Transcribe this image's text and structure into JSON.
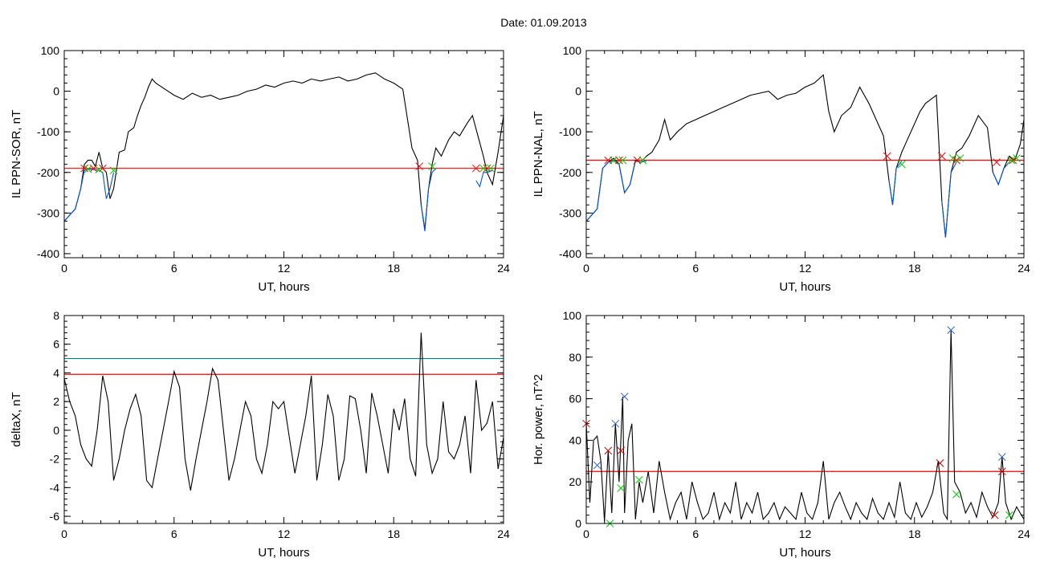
{
  "page": {
    "title": "Date:  01.09.2013"
  },
  "chart_data": [
    {
      "id": "il-sor",
      "type": "line",
      "xlabel": "UT, hours",
      "ylabel": "IL PPN-SOR, nT",
      "xlim": [
        0,
        24
      ],
      "ylim": [
        -410,
        100
      ],
      "xticks": [
        0,
        6,
        12,
        18,
        24
      ],
      "yticks": [
        100,
        0,
        -100,
        -200,
        -300,
        -400
      ],
      "threshold_lines": [
        {
          "value": -190,
          "color": "#ff0000"
        }
      ],
      "series": [
        {
          "color": "#000000",
          "x": [
            0,
            0.3,
            0.6,
            0.9,
            1.1,
            1.3,
            1.5,
            1.7,
            1.9,
            2.1,
            2.3,
            2.5,
            2.7,
            3.0,
            3.3,
            3.5,
            3.8,
            4.0,
            4.2,
            4.4,
            4.6,
            4.8,
            5.0,
            5.5,
            6.0,
            6.5,
            7.0,
            7.5,
            8.0,
            8.5,
            9.0,
            9.5,
            10.0,
            10.5,
            11.0,
            11.5,
            12.0,
            12.5,
            13.0,
            13.5,
            14.0,
            14.5,
            15.0,
            15.5,
            16.0,
            16.5,
            17.0,
            17.5,
            18.0,
            18.5,
            19.0,
            19.3,
            19.5,
            19.7,
            19.9,
            20.1,
            20.3,
            20.6,
            21.0,
            21.3,
            21.6,
            22.0,
            22.3,
            22.6,
            22.9,
            23.1,
            23.4,
            23.7,
            24.0
          ],
          "y": [
            -320,
            -305,
            -290,
            -240,
            -180,
            -170,
            -170,
            -185,
            -150,
            -190,
            -200,
            -265,
            -240,
            -150,
            -145,
            -100,
            -90,
            -60,
            -35,
            -15,
            10,
            30,
            20,
            5,
            -10,
            -20,
            -5,
            -15,
            -10,
            -20,
            -15,
            -10,
            0,
            5,
            15,
            10,
            20,
            25,
            20,
            30,
            25,
            30,
            35,
            25,
            30,
            40,
            45,
            30,
            20,
            5,
            -140,
            -170,
            -280,
            -340,
            -240,
            -180,
            -140,
            -160,
            -120,
            -100,
            -110,
            -80,
            -60,
            -110,
            -160,
            -200,
            -230,
            -150,
            -60
          ]
        },
        {
          "color": "#0055dd",
          "x": [
            0,
            0.3,
            0.6,
            0.9,
            1.1,
            1.3,
            1.6,
            1.9,
            2.1,
            2.3,
            2.5,
            2.7
          ],
          "y": [
            -320,
            -305,
            -290,
            -240,
            -195,
            -192,
            -193,
            -195,
            -200,
            -265,
            -240,
            -200
          ]
        },
        {
          "color": "#0055dd",
          "x": [
            19.5,
            19.7,
            19.9,
            20.1,
            20.3
          ],
          "y": [
            -280,
            -345,
            -240,
            -200,
            -190
          ]
        },
        {
          "color": "#0055dd",
          "x": [
            22.5,
            22.7,
            22.9,
            23.1,
            23.4
          ],
          "y": [
            -220,
            -235,
            -200,
            -200,
            -195
          ]
        }
      ],
      "markers_start": {
        "color": "#ff0000",
        "x": [
          1.1,
          1.6,
          2.1,
          19.4,
          22.5,
          23.1
        ],
        "y": [
          -190,
          -190,
          -190,
          -185,
          -190,
          -190
        ]
      },
      "markers_end": {
        "color": "#00cc00",
        "x": [
          1.3,
          1.9,
          2.7,
          20.1,
          22.9,
          23.3
        ],
        "y": [
          -192,
          -193,
          -195,
          -185,
          -190,
          -190
        ]
      }
    },
    {
      "id": "il-nal",
      "type": "line",
      "xlabel": "UT, hours",
      "ylabel": "IL PPN-NAL, nT",
      "xlim": [
        0,
        24
      ],
      "ylim": [
        -410,
        100
      ],
      "xticks": [
        0,
        6,
        12,
        18,
        24
      ],
      "yticks": [
        100,
        0,
        -100,
        -200,
        -300,
        -400
      ],
      "threshold_lines": [
        {
          "value": -170,
          "color": "#ff0000"
        }
      ],
      "series": [
        {
          "color": "#000000",
          "x": [
            0,
            0.3,
            0.6,
            0.9,
            1.2,
            1.5,
            1.8,
            2.1,
            2.4,
            2.7,
            3.0,
            3.3,
            3.6,
            4.0,
            4.3,
            4.6,
            5.0,
            5.5,
            6.0,
            6.5,
            7.0,
            7.5,
            8.0,
            8.5,
            9.0,
            9.5,
            10.0,
            10.5,
            11.0,
            11.5,
            12.0,
            12.5,
            13.0,
            13.3,
            13.6,
            14.0,
            14.5,
            15.0,
            15.5,
            16.0,
            16.3,
            16.6,
            16.8,
            17.0,
            17.3,
            17.6,
            18.0,
            18.3,
            18.6,
            18.9,
            19.2,
            19.5,
            19.7,
            20.0,
            20.3,
            20.6,
            21.0,
            21.5,
            22.0,
            22.3,
            22.6,
            22.9,
            23.2,
            23.5,
            23.8,
            24.0
          ],
          "y": [
            -320,
            -305,
            -290,
            -190,
            -175,
            -165,
            -180,
            -250,
            -230,
            -170,
            -175,
            -160,
            -150,
            -120,
            -70,
            -120,
            -100,
            -80,
            -70,
            -60,
            -50,
            -40,
            -30,
            -20,
            -10,
            -5,
            0,
            -20,
            -10,
            -5,
            10,
            20,
            40,
            -50,
            -100,
            -60,
            -40,
            10,
            -30,
            -80,
            -110,
            -220,
            -280,
            -190,
            -150,
            -120,
            -80,
            -50,
            -30,
            -20,
            -10,
            -270,
            -360,
            -200,
            -150,
            -140,
            -110,
            -60,
            -90,
            -200,
            -230,
            -190,
            -160,
            -170,
            -130,
            -70
          ]
        },
        {
          "color": "#0055dd",
          "x": [
            0,
            0.3,
            0.6,
            0.9,
            1.2,
            1.5,
            1.8,
            2.1,
            2.4,
            2.7,
            3.0,
            3.3
          ],
          "y": [
            -320,
            -305,
            -290,
            -190,
            -175,
            -172,
            -180,
            -250,
            -230,
            -172,
            -175,
            -172
          ]
        },
        {
          "color": "#0055dd",
          "x": [
            16.6,
            16.8,
            17.0,
            17.3
          ],
          "y": [
            -220,
            -280,
            -190,
            -172
          ]
        },
        {
          "color": "#0055dd",
          "x": [
            19.5,
            19.7,
            20.0,
            20.3
          ],
          "y": [
            -270,
            -360,
            -200,
            -175
          ]
        },
        {
          "color": "#0055dd",
          "x": [
            22.3,
            22.6,
            22.9,
            23.2
          ],
          "y": [
            -200,
            -230,
            -190,
            -175
          ]
        }
      ],
      "markers_start": {
        "color": "#ff0000",
        "x": [
          1.2,
          1.8,
          2.8,
          16.5,
          19.5,
          20.3,
          22.5,
          23.4
        ],
        "y": [
          -170,
          -170,
          -170,
          -160,
          -160,
          -170,
          -175,
          -170
        ]
      },
      "markers_end": {
        "color": "#00cc00",
        "x": [
          1.5,
          2.0,
          3.1,
          17.3,
          20.1,
          20.5,
          23.3,
          23.6
        ],
        "y": [
          -170,
          -170,
          -170,
          -180,
          -165,
          -165,
          -170,
          -165
        ]
      }
    },
    {
      "id": "deltax",
      "type": "line",
      "xlabel": "UT, hours",
      "ylabel": "deltaX, nT",
      "xlim": [
        0,
        24
      ],
      "ylim": [
        -6.5,
        8
      ],
      "xticks": [
        0,
        6,
        12,
        18,
        24
      ],
      "yticks": [
        8,
        6,
        4,
        2,
        0,
        -2,
        -4,
        -6
      ],
      "threshold_lines": [
        {
          "value": 5,
          "color": "#008080"
        },
        {
          "value": 3.9,
          "color": "#ff0000"
        }
      ],
      "series": [
        {
          "color": "#000000",
          "x": [
            0,
            0.3,
            0.6,
            0.9,
            1.2,
            1.5,
            1.8,
            2.1,
            2.4,
            2.7,
            3.0,
            3.3,
            3.6,
            3.9,
            4.2,
            4.5,
            4.8,
            5.1,
            5.4,
            5.7,
            6.0,
            6.3,
            6.6,
            6.9,
            7.2,
            7.5,
            7.8,
            8.1,
            8.4,
            8.7,
            9.0,
            9.3,
            9.6,
            9.9,
            10.2,
            10.5,
            10.8,
            11.1,
            11.4,
            11.7,
            12.0,
            12.3,
            12.6,
            12.9,
            13.2,
            13.5,
            13.8,
            14.1,
            14.4,
            14.7,
            15.0,
            15.3,
            15.6,
            15.9,
            16.2,
            16.5,
            16.8,
            17.1,
            17.4,
            17.7,
            18.0,
            18.3,
            18.6,
            18.9,
            19.2,
            19.5,
            19.8,
            20.1,
            20.4,
            20.7,
            21.0,
            21.3,
            21.6,
            21.9,
            22.2,
            22.5,
            22.8,
            23.1,
            23.4,
            23.7,
            24.0
          ],
          "y": [
            3.6,
            2,
            1,
            -1,
            -2,
            -2.5,
            0,
            3.8,
            2,
            -3.5,
            -2,
            0,
            1.5,
            2.5,
            1,
            -3.5,
            -4,
            -2,
            0,
            2,
            4.1,
            3,
            -2,
            -4.2,
            -2,
            0,
            2,
            4.3,
            3.5,
            0,
            -3.5,
            -2,
            0,
            2,
            1,
            -2,
            -3,
            -1,
            2,
            1.5,
            2,
            -0.5,
            -3,
            -1,
            1,
            3.8,
            -3.5,
            -1,
            2.5,
            1,
            -3.5,
            -2,
            2.4,
            2.2,
            0,
            -3,
            2.6,
            1,
            -1,
            -3,
            1.5,
            0,
            2.2,
            -2,
            -3.2,
            6.8,
            -1,
            -3,
            -2,
            2,
            -1.5,
            -2,
            -1,
            1,
            -3,
            3.5,
            0,
            0.5,
            2,
            -2.7,
            -0.5
          ]
        }
      ]
    },
    {
      "id": "hor-power",
      "type": "line",
      "xlabel": "UT, hours",
      "ylabel": "Hor. power, nT^2",
      "xlim": [
        0,
        24
      ],
      "ylim": [
        0,
        100
      ],
      "xticks": [
        0,
        6,
        12,
        18,
        24
      ],
      "yticks": [
        100,
        80,
        60,
        40,
        20,
        0
      ],
      "threshold_lines": [
        {
          "value": 25,
          "color": "#ff0000"
        }
      ],
      "series": [
        {
          "color": "#000000",
          "x": [
            0,
            0.2,
            0.4,
            0.6,
            0.8,
            1.0,
            1.2,
            1.4,
            1.6,
            1.8,
            2.0,
            2.1,
            2.3,
            2.5,
            2.7,
            2.9,
            3.1,
            3.4,
            3.7,
            4.0,
            4.3,
            4.6,
            4.9,
            5.2,
            5.5,
            5.8,
            6.1,
            6.4,
            6.7,
            7.0,
            7.3,
            7.6,
            7.9,
            8.2,
            8.5,
            8.8,
            9.1,
            9.4,
            9.7,
            10.0,
            10.3,
            10.6,
            10.9,
            11.2,
            11.5,
            11.8,
            12.1,
            12.4,
            12.7,
            13.0,
            13.3,
            13.6,
            13.9,
            14.2,
            14.5,
            14.8,
            15.1,
            15.4,
            15.7,
            16.0,
            16.3,
            16.6,
            16.9,
            17.2,
            17.5,
            17.8,
            18.1,
            18.4,
            18.7,
            19.0,
            19.3,
            19.6,
            19.8,
            20.0,
            20.2,
            20.5,
            20.8,
            21.1,
            21.4,
            21.7,
            22.0,
            22.3,
            22.6,
            22.8,
            23.0,
            23.3,
            23.6,
            24.0
          ],
          "y": [
            48,
            10,
            40,
            42,
            30,
            1,
            35,
            5,
            48,
            20,
            61,
            5,
            40,
            48,
            2,
            20,
            10,
            25,
            5,
            30,
            15,
            2,
            10,
            15,
            2,
            20,
            10,
            2,
            5,
            15,
            2,
            10,
            5,
            20,
            2,
            10,
            5,
            15,
            2,
            5,
            10,
            2,
            8,
            5,
            2,
            15,
            5,
            2,
            10,
            30,
            2,
            10,
            15,
            8,
            2,
            10,
            5,
            2,
            12,
            5,
            2,
            10,
            3,
            20,
            5,
            2,
            10,
            3,
            8,
            15,
            30,
            5,
            2,
            93,
            20,
            15,
            5,
            10,
            3,
            15,
            8,
            3,
            10,
            32,
            10,
            2,
            8,
            2
          ]
        }
      ],
      "markers_blue": {
        "color": "#3366cc",
        "x": [
          0.6,
          1.6,
          2.1,
          20.0,
          22.8
        ],
        "y": [
          28,
          48,
          61,
          93,
          32
        ]
      },
      "markers_red": {
        "color": "#cc0000",
        "x": [
          0,
          1.2,
          1.9,
          19.4,
          22.4,
          22.8
        ],
        "y": [
          48,
          35,
          35,
          29,
          4,
          25
        ]
      },
      "markers_green": {
        "color": "#00cc00",
        "x": [
          1.3,
          1.9,
          2.9,
          20.3,
          23.2
        ],
        "y": [
          0,
          17,
          21,
          14,
          4
        ]
      }
    }
  ]
}
